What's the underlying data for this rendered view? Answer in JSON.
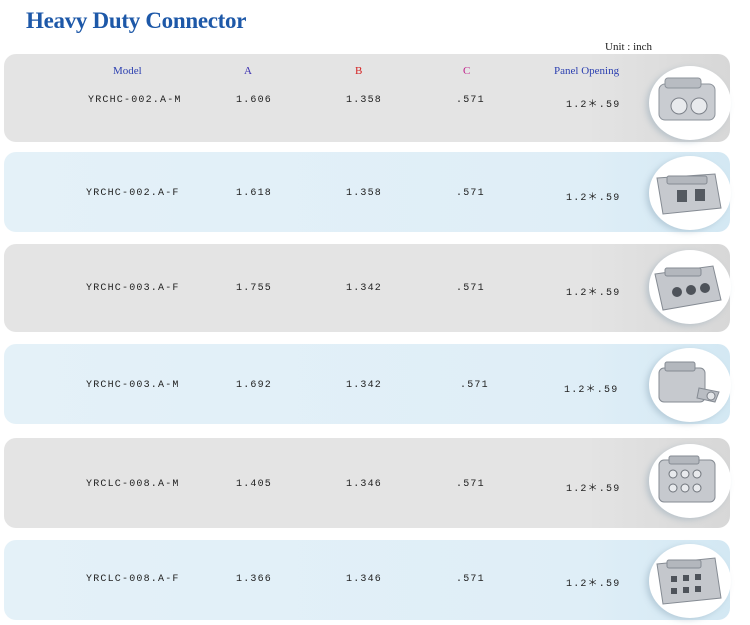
{
  "title": "Heavy Duty Connector",
  "unit_label": "Unit : inch",
  "headers": {
    "model": "Model",
    "a": "A",
    "b": "B",
    "c": "C",
    "panel": "Panel Opening"
  },
  "header_colors": {
    "model": "#2b3fb0",
    "a": "#3a2fb0",
    "b": "#d42020",
    "c": "#c0208a",
    "panel": "#2b3fb0"
  },
  "rows": [
    {
      "model": "YRCHC-002.A-M",
      "a": "1.606",
      "b": "1.358",
      "c": ".571",
      "panel": "1.2＊.59",
      "icon": "2-pin-male-connector-icon"
    },
    {
      "model": "YRCHC-002.A-F",
      "a": "1.618",
      "b": "1.358",
      "c": ".571",
      "panel": "1.2＊.59",
      "icon": "2-pin-female-connector-icon"
    },
    {
      "model": "YRCHC-003.A-F",
      "a": "1.755",
      "b": "1.342",
      "c": ".571",
      "panel": "1.2＊.59",
      "icon": "3-pin-female-connector-icon"
    },
    {
      "model": "YRCHC-003.A-M",
      "a": "1.692",
      "b": "1.342",
      "c": ".571",
      "panel": "1.2＊.59",
      "icon": "3-pin-male-connector-icon"
    },
    {
      "model": "YRCLC-008.A-M",
      "a": "1.405",
      "b": "1.346",
      "c": ".571",
      "panel": "1.2＊.59",
      "icon": "8-pin-male-connector-icon"
    },
    {
      "model": "YRCLC-008.A-F",
      "a": "1.366",
      "b": "1.346",
      "c": ".571",
      "panel": "1.2＊.59",
      "icon": "8-pin-female-connector-icon"
    }
  ],
  "colors": {
    "title": "#1d58a8",
    "row_grey": "#e4e4e4",
    "row_blue": "#e4f1f8"
  }
}
